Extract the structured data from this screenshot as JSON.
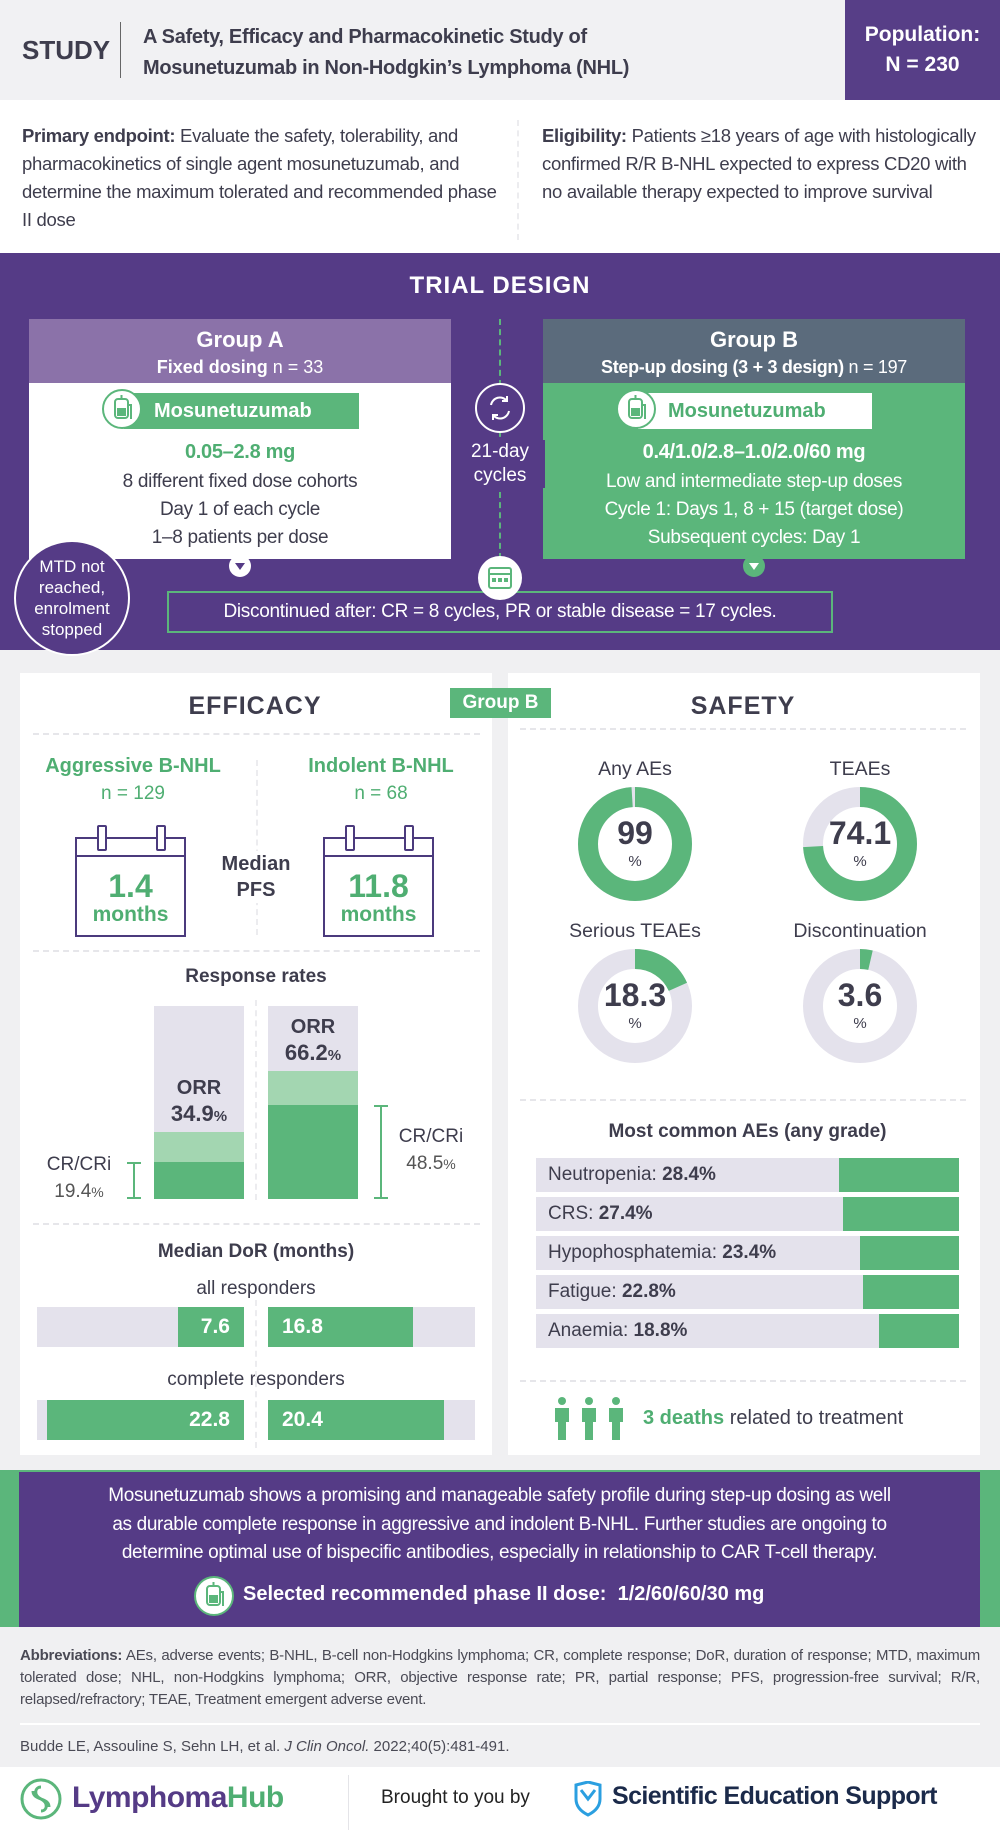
{
  "header": {
    "study_label": "STUDY",
    "title_line1": "A Safety, Efficacy and Pharmacokinetic Study of",
    "title_line2": "Mosunetuzumab in Non-Hodgkin’s Lymphoma (NHL)",
    "population_label": "Population:",
    "population_value": "N = 230"
  },
  "endpoints": {
    "primary_label": "Primary endpoint:",
    "primary_text": " Evaluate the safety, tolerability, and pharmacokinetics of single agent mosunetuzumab, and determine the maximum tolerated and recommended phase II dose",
    "eligibility_label": "Eligibility:",
    "eligibility_text": " Patients ≥18 years of age with histologically confirmed R/R B-NHL expected to express CD20 with no available therapy expected to improve survival"
  },
  "trial_design": {
    "title": "TRIAL DESIGN",
    "group_a": {
      "name": "Group A",
      "dosing_label": "Fixed dosing",
      "n": " n = 33",
      "drug": "Mosunetuzumab",
      "dose": "0.05–2.8 mg",
      "lines": [
        "8 different fixed dose cohorts",
        "Day 1 of each cycle",
        "1–8 patients per dose"
      ]
    },
    "group_b": {
      "name": "Group B",
      "dosing_label": "Step-up dosing (3 + 3 design)",
      "n": " n = 197",
      "drug": "Mosunetuzumab",
      "dose": "0.4/1.0/2.8–1.0/2.0/60 mg",
      "lines": [
        "Low and intermediate step-up doses",
        "Cycle 1: Days 1, 8 + 15 (target dose)",
        "Subsequent cycles: Day 1"
      ]
    },
    "cycle_line1": "21-day",
    "cycle_line2": "cycles",
    "mtd_lines": [
      "MTD not",
      "reached,",
      "enrolment",
      "stopped"
    ],
    "discontinued": "Discontinued after: CR = 8 cycles, PR or stable disease = 17 cycles."
  },
  "efficacy": {
    "title": "EFFICACY",
    "group_badge": "Group B",
    "aggressive": {
      "label": "Aggressive B-NHL",
      "n": "n = 129",
      "pfs_value": "1.4",
      "pfs_unit": "months"
    },
    "indolent": {
      "label": "Indolent B-NHL",
      "n": "n = 68",
      "pfs_value": "11.8",
      "pfs_unit": "months"
    },
    "pfs_label1": "Median",
    "pfs_label2": "PFS",
    "response_title": "Response rates",
    "orr_label": "ORR",
    "cr_label": "CR/CRi",
    "dor_title": "Median DoR (months)",
    "dor_all_label": "all responders",
    "dor_complete_label": "complete responders"
  },
  "safety": {
    "title": "SAFETY",
    "ae_title": "Most common AEs (any grade)",
    "deaths_bold": "3 deaths",
    "deaths_text": " related to treatment"
  },
  "chart_data": [
    {
      "type": "bar",
      "title": "Response rates",
      "categories": [
        "Aggressive B-NHL",
        "Indolent B-NHL"
      ],
      "series": [
        {
          "name": "ORR",
          "values": [
            34.9,
            66.2
          ]
        },
        {
          "name": "CR/CRi",
          "values": [
            19.4,
            48.5
          ]
        }
      ],
      "unit": "%",
      "ylim": [
        0,
        100
      ]
    },
    {
      "type": "bar",
      "title": "Median DoR (months)",
      "categories": [
        "all responders",
        "complete responders"
      ],
      "series": [
        {
          "name": "Aggressive B-NHL",
          "values": [
            7.6,
            22.8
          ]
        },
        {
          "name": "Indolent B-NHL",
          "values": [
            16.8,
            20.4
          ]
        }
      ],
      "xlim": [
        0,
        24
      ]
    },
    {
      "type": "pie",
      "title": "Safety",
      "slices": [
        {
          "label": "Any AEs",
          "value": 99
        },
        {
          "label": "TEAEs",
          "value": 74.1
        },
        {
          "label": "Serious TEAEs",
          "value": 18.3
        },
        {
          "label": "Discontinuation",
          "value": 3.6
        }
      ],
      "unit": "%"
    },
    {
      "type": "bar",
      "title": "Most common AEs (any grade)",
      "categories": [
        "Neutropenia",
        "CRS",
        "Hypophosphatemia",
        "Fatigue",
        "Anaemia"
      ],
      "values": [
        28.4,
        27.4,
        23.4,
        22.8,
        18.8
      ],
      "unit": "%",
      "xlim": [
        0,
        100
      ]
    }
  ],
  "conclusion": {
    "lines": [
      "Mosunetuzumab shows a promising and manageable safety profile during step-up dosing as well",
      "as durable complete response in aggressive and indolent B-NHL. Further studies are ongoing to",
      "determine optimal use of bispecific antibodies, especially in relationship to CAR T-cell therapy."
    ],
    "dose_label": "Selected recommended phase II dose:  1/2/60/60/30 mg"
  },
  "footer": {
    "abbrev_label": "Abbreviations:",
    "abbrev_text": " AEs, adverse events; B-NHL, B-cell non-Hodgkins lymphoma; CR, complete response; DoR, duration of response; MTD, maximum tolerated dose; NHL, non-Hodgkins lymphoma; ORR, objective response rate; PR, partial response; PFS, progression-free survival; R/R, relapsed/refractory; TEAE, Treatment emergent adverse event.",
    "citation_authors": "Budde LE, Assouline S, Sehn LH, et al. ",
    "citation_journal": "J Clin Oncol.",
    "citation_rest": " 2022;40(5):481-491.",
    "logo_part1": "Lymphoma",
    "logo_part2": "Hub",
    "brought_by": "Brought to you by",
    "sponsor": "Scientific Education Support"
  },
  "colors": {
    "purple": "#553b86",
    "green": "#5bb67b",
    "light_green": "#a3d6b1",
    "track": "#e4e2ec",
    "group_a": "#8b72a9",
    "group_b": "#5b6b7c"
  }
}
